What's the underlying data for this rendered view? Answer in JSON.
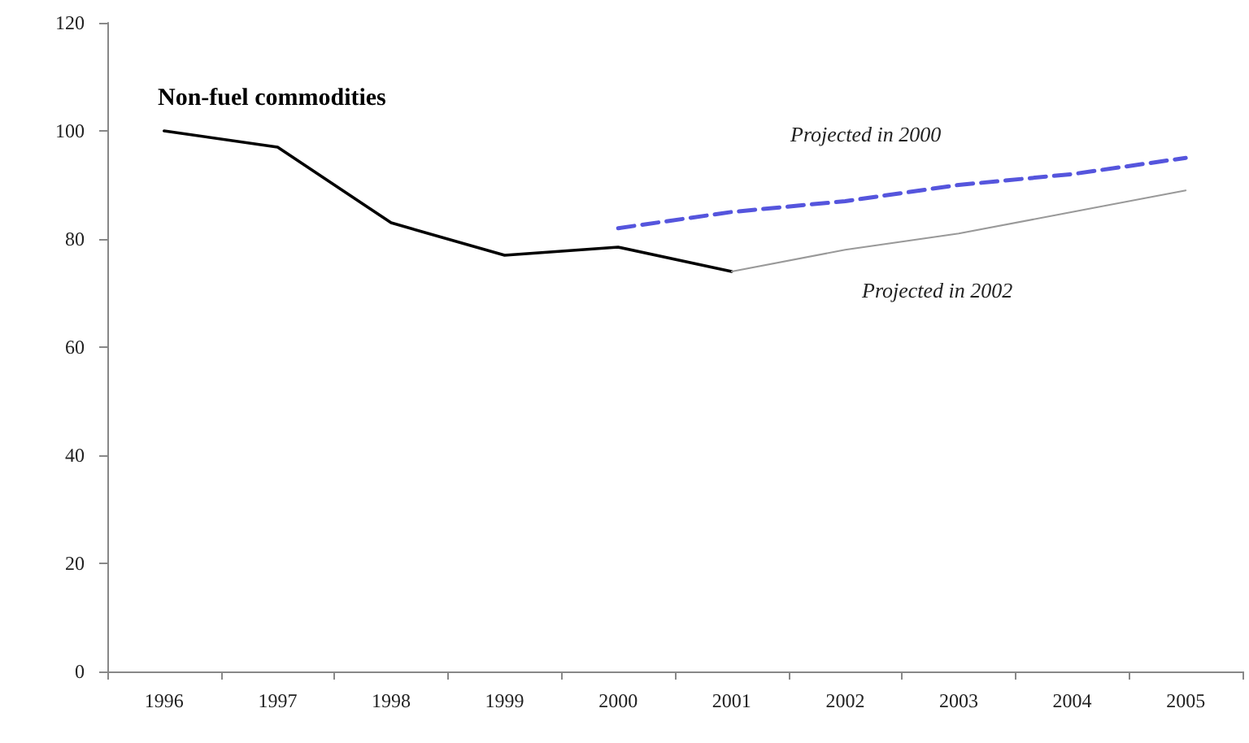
{
  "chart_data": {
    "type": "line",
    "title": "Non-fuel commodities",
    "categories": [
      "1996",
      "1997",
      "1998",
      "1999",
      "2000",
      "2001",
      "2002",
      "2003",
      "2004",
      "2005"
    ],
    "series": [
      {
        "color": "#000000",
        "line_style": "solid",
        "values": [
          100,
          97,
          83,
          77,
          78.5,
          74,
          null,
          null,
          null,
          null
        ]
      },
      {
        "color": "#5555dd",
        "line_style": "dashed",
        "values": [
          null,
          null,
          null,
          null,
          82,
          85,
          87,
          90,
          92,
          95
        ]
      },
      {
        "color": "#999999",
        "line_style": "solid",
        "values": [
          null,
          null,
          null,
          null,
          null,
          74,
          78,
          81,
          85,
          89
        ]
      }
    ],
    "annotations": [
      "Projected in 2000",
      "Projected in 2002"
    ],
    "ylim": [
      0,
      120
    ],
    "yticks": [
      0,
      20,
      40,
      60,
      80,
      100,
      120
    ],
    "marker": "none",
    "grid": false
  }
}
